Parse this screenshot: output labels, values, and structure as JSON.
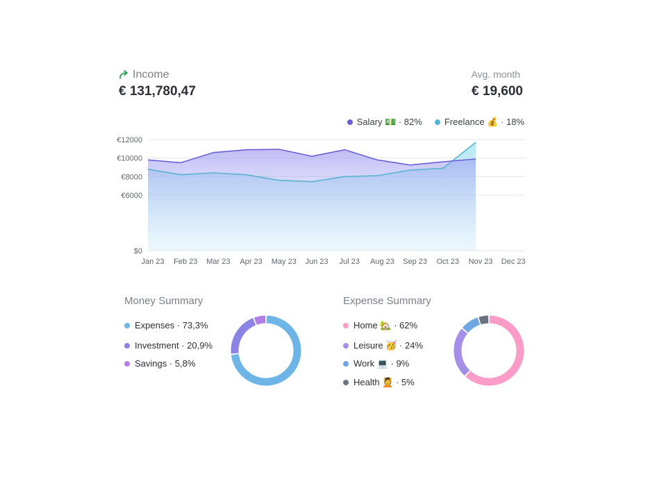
{
  "income": {
    "label": "Income",
    "value": "€ 131,780,47",
    "icon": "trend-up-arrow-icon",
    "icon_color": "#2ea05a"
  },
  "avg_month": {
    "label": "Avg. month",
    "value": "€ 19,600"
  },
  "chart_data": {
    "type": "area",
    "categories": [
      "Jan 23",
      "Feb 23",
      "Mar 23",
      "Apr 23",
      "May 23",
      "Jun 23",
      "Jul 23",
      "Aug 23",
      "Sep 23",
      "Oct 23",
      "Nov 23",
      "Dec 23"
    ],
    "y_ticks": [
      "€12000",
      "€10000",
      "€8000",
      "€6000",
      "$0"
    ],
    "ylim": [
      0,
      12000
    ],
    "grid": true,
    "legend_position": "top-right",
    "series": [
      {
        "name": "Salary 💵 · 82%",
        "color": "#6a5fd6",
        "values": [
          9800,
          9500,
          10600,
          10900,
          10950,
          10200,
          10900,
          9800,
          9250,
          9600,
          9900,
          null
        ]
      },
      {
        "name": "Freelance 💰 · 18%",
        "color": "#55b4cf",
        "values": [
          8800,
          8200,
          8400,
          8200,
          7600,
          7450,
          8000,
          8100,
          8700,
          8900,
          11700,
          null
        ]
      }
    ]
  },
  "money_summary": {
    "title": "Money Summary",
    "items": [
      {
        "label": "Expenses · 73,3%",
        "value": 73.3,
        "color": "#6cb5e6"
      },
      {
        "label": "Investment · 20,9%",
        "value": 20.9,
        "color": "#8b84e6"
      },
      {
        "label": "Savings · 5,8%",
        "value": 5.8,
        "color": "#b27fe8"
      }
    ]
  },
  "expense_summary": {
    "title": "Expense Summary",
    "items": [
      {
        "label": "Home 🏡 · 62%",
        "value": 62,
        "color": "#fb9bc8"
      },
      {
        "label": "Leisure 🥳 · 24%",
        "value": 24,
        "color": "#a58ee8"
      },
      {
        "label": "Work 💻 · 9%",
        "value": 9,
        "color": "#6fa6e3"
      },
      {
        "label": "Health 💆 · 5%",
        "value": 5,
        "color": "#6b7382"
      }
    ]
  }
}
